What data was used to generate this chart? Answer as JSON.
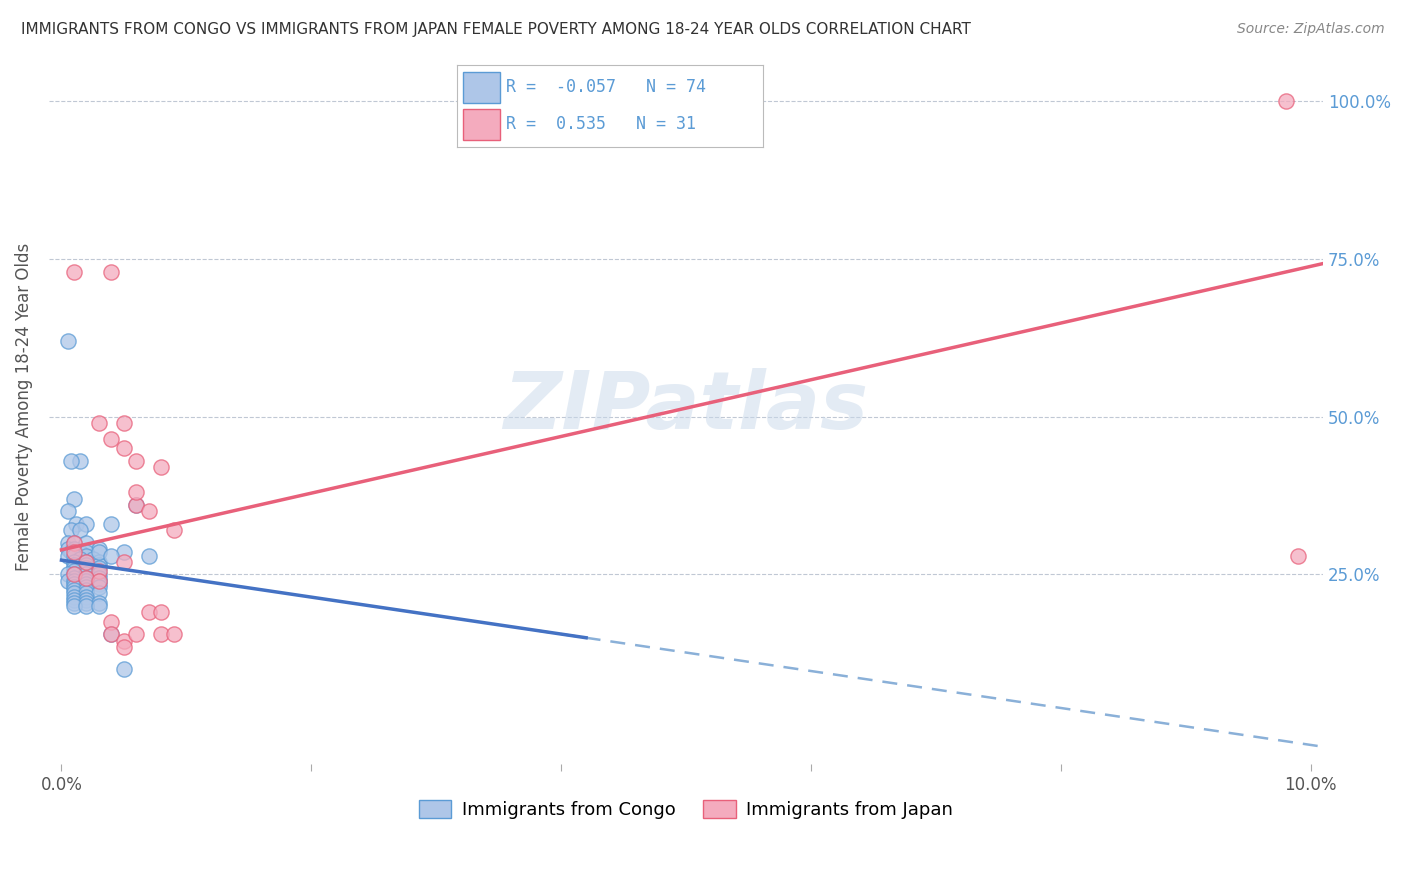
{
  "title": "IMMIGRANTS FROM CONGO VS IMMIGRANTS FROM JAPAN FEMALE POVERTY AMONG 18-24 YEAR OLDS CORRELATION CHART",
  "source": "Source: ZipAtlas.com",
  "ylabel": "Female Poverty Among 18-24 Year Olds",
  "xlim": [
    -0.001,
    0.101
  ],
  "ylim": [
    -0.05,
    1.08
  ],
  "congo_R": -0.057,
  "congo_N": 74,
  "japan_R": 0.535,
  "japan_N": 31,
  "congo_color": "#aec6e8",
  "japan_color": "#f4abbe",
  "congo_edge_color": "#5b9bd5",
  "japan_edge_color": "#e8607a",
  "congo_line_color": "#4472c4",
  "japan_line_color": "#e8607a",
  "dashed_line_color": "#8ab0d8",
  "background_color": "#ffffff",
  "watermark": "ZIPatlas",
  "right_tick_color": "#5b9bd5",
  "congo_scatter": [
    [
      0.0005,
      0.62
    ],
    [
      0.0015,
      0.43
    ],
    [
      0.0008,
      0.43
    ],
    [
      0.001,
      0.37
    ],
    [
      0.0005,
      0.35
    ],
    [
      0.0012,
      0.33
    ],
    [
      0.002,
      0.33
    ],
    [
      0.0008,
      0.32
    ],
    [
      0.0015,
      0.32
    ],
    [
      0.0005,
      0.3
    ],
    [
      0.001,
      0.3
    ],
    [
      0.002,
      0.3
    ],
    [
      0.0005,
      0.29
    ],
    [
      0.001,
      0.29
    ],
    [
      0.003,
      0.29
    ],
    [
      0.0008,
      0.285
    ],
    [
      0.0015,
      0.285
    ],
    [
      0.002,
      0.285
    ],
    [
      0.0005,
      0.28
    ],
    [
      0.001,
      0.28
    ],
    [
      0.002,
      0.28
    ],
    [
      0.0015,
      0.275
    ],
    [
      0.0025,
      0.275
    ],
    [
      0.001,
      0.27
    ],
    [
      0.002,
      0.27
    ],
    [
      0.003,
      0.27
    ],
    [
      0.001,
      0.265
    ],
    [
      0.002,
      0.265
    ],
    [
      0.003,
      0.265
    ],
    [
      0.001,
      0.26
    ],
    [
      0.002,
      0.26
    ],
    [
      0.003,
      0.26
    ],
    [
      0.001,
      0.255
    ],
    [
      0.002,
      0.255
    ],
    [
      0.0005,
      0.25
    ],
    [
      0.001,
      0.25
    ],
    [
      0.002,
      0.25
    ],
    [
      0.003,
      0.25
    ],
    [
      0.001,
      0.245
    ],
    [
      0.002,
      0.245
    ],
    [
      0.003,
      0.245
    ],
    [
      0.0005,
      0.24
    ],
    [
      0.001,
      0.24
    ],
    [
      0.002,
      0.24
    ],
    [
      0.003,
      0.24
    ],
    [
      0.001,
      0.235
    ],
    [
      0.002,
      0.235
    ],
    [
      0.003,
      0.235
    ],
    [
      0.001,
      0.23
    ],
    [
      0.002,
      0.23
    ],
    [
      0.003,
      0.23
    ],
    [
      0.001,
      0.225
    ],
    [
      0.002,
      0.225
    ],
    [
      0.001,
      0.22
    ],
    [
      0.002,
      0.22
    ],
    [
      0.003,
      0.22
    ],
    [
      0.001,
      0.215
    ],
    [
      0.002,
      0.215
    ],
    [
      0.001,
      0.21
    ],
    [
      0.002,
      0.21
    ],
    [
      0.001,
      0.205
    ],
    [
      0.002,
      0.205
    ],
    [
      0.003,
      0.205
    ],
    [
      0.001,
      0.2
    ],
    [
      0.002,
      0.2
    ],
    [
      0.003,
      0.2
    ],
    [
      0.003,
      0.285
    ],
    [
      0.004,
      0.33
    ],
    [
      0.005,
      0.285
    ],
    [
      0.006,
      0.36
    ],
    [
      0.004,
      0.28
    ],
    [
      0.004,
      0.155
    ],
    [
      0.005,
      0.1
    ],
    [
      0.007,
      0.28
    ]
  ],
  "japan_scatter": [
    [
      0.098,
      1.0
    ],
    [
      0.001,
      0.73
    ],
    [
      0.004,
      0.73
    ],
    [
      0.003,
      0.49
    ],
    [
      0.004,
      0.465
    ],
    [
      0.005,
      0.49
    ],
    [
      0.005,
      0.45
    ],
    [
      0.006,
      0.43
    ],
    [
      0.001,
      0.3
    ],
    [
      0.001,
      0.285
    ],
    [
      0.002,
      0.27
    ],
    [
      0.003,
      0.255
    ],
    [
      0.001,
      0.25
    ],
    [
      0.002,
      0.245
    ],
    [
      0.003,
      0.24
    ],
    [
      0.005,
      0.27
    ],
    [
      0.006,
      0.36
    ],
    [
      0.006,
      0.38
    ],
    [
      0.007,
      0.35
    ],
    [
      0.007,
      0.19
    ],
    [
      0.008,
      0.42
    ],
    [
      0.008,
      0.19
    ],
    [
      0.008,
      0.155
    ],
    [
      0.009,
      0.32
    ],
    [
      0.009,
      0.155
    ],
    [
      0.004,
      0.175
    ],
    [
      0.004,
      0.155
    ],
    [
      0.005,
      0.145
    ],
    [
      0.005,
      0.135
    ],
    [
      0.006,
      0.155
    ],
    [
      0.099,
      0.28
    ]
  ]
}
